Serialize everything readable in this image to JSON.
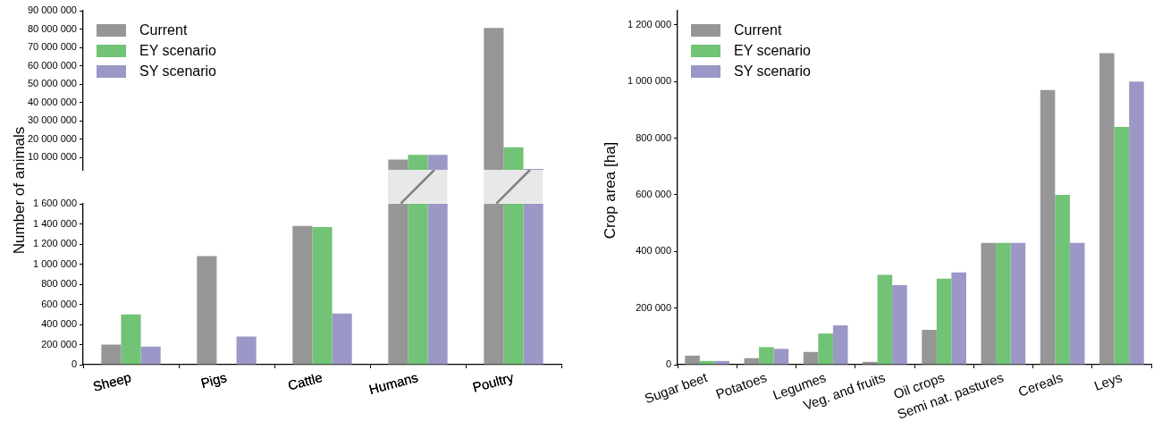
{
  "chart_data": [
    {
      "type": "bar",
      "categories": [
        "Sheep",
        "Pigs",
        "Cattle",
        "Humans",
        "Poultry"
      ],
      "series": [
        {
          "name": "Current",
          "color": "#969696",
          "values": [
            null,
            null,
            null,
            8800000,
            80600000
          ]
        },
        {
          "name": "EY scenario",
          "color": "#71c375",
          "values": [
            null,
            null,
            null,
            11400000,
            15500000
          ]
        },
        {
          "name": "SY scenario",
          "color": "#9b98c7",
          "values": [
            null,
            null,
            null,
            11400000,
            3700000
          ]
        }
      ],
      "ylim": [
        3000000,
        90000000
      ],
      "yticks": [
        {
          "value": 10000000,
          "label": "10 000 000"
        },
        {
          "value": 20000000,
          "label": "20 000 000"
        },
        {
          "value": 30000000,
          "label": "30 000 000"
        },
        {
          "value": 40000000,
          "label": "40 000 000"
        },
        {
          "value": 50000000,
          "label": "50 000 000"
        },
        {
          "value": 60000000,
          "label": "60 000 000"
        },
        {
          "value": 70000000,
          "label": "70 000 000"
        },
        {
          "value": 80000000,
          "label": "80 000 000"
        },
        {
          "value": 90000000,
          "label": "90 000 000"
        }
      ],
      "legend": "top left",
      "tick_labels": "y",
      "grid": false
    },
    {
      "type": "bar",
      "categories": [
        "Sheep",
        "Pigs",
        "Cattle",
        "Humans",
        "Poultry"
      ],
      "ylabel": "Number of animals",
      "series": [
        {
          "color": "#969696",
          "values": [
            200000,
            1080000,
            1380000,
            1600000,
            1600000
          ]
        },
        {
          "color": "#71c375",
          "values": [
            500000,
            0,
            1370000,
            1600000,
            1600000
          ]
        },
        {
          "color": "#9b98c7",
          "values": [
            180000,
            280000,
            510000,
            1600000,
            1600000
          ]
        }
      ],
      "ylim": [
        0,
        1600000
      ],
      "yticks": [
        {
          "value": 0,
          "label": "0"
        },
        {
          "value": 200000,
          "label": "200 000"
        },
        {
          "value": 400000,
          "label": "400 000"
        },
        {
          "value": 600000,
          "label": "600 000"
        },
        {
          "value": 800000,
          "label": "800 000"
        },
        {
          "value": 1000000,
          "label": "1 000 000"
        },
        {
          "value": 1200000,
          "label": "1 200 000"
        },
        {
          "value": 1400000,
          "label": "1 400 000"
        },
        {
          "value": 1600000,
          "label": "1 600 000"
        }
      ],
      "grid": false
    },
    {
      "type": "bar",
      "categories": [
        "Sugar beet",
        "Potatoes",
        "Legumes",
        "Veg. and fruits",
        "Oil crops",
        "Semi nat. pastures",
        "Cereals",
        "Leys"
      ],
      "ylabel": "Crop area [ha]",
      "series": [
        {
          "name": "Current",
          "color": "#969696",
          "values": [
            32000,
            23000,
            45000,
            10000,
            123000,
            430000,
            970000,
            1100000
          ]
        },
        {
          "name": "EY scenario",
          "color": "#71c375",
          "values": [
            13000,
            62000,
            110000,
            317000,
            304000,
            430000,
            600000,
            840000
          ]
        },
        {
          "name": "SY scenario",
          "color": "#9b98c7",
          "values": [
            13000,
            56000,
            139000,
            281000,
            326000,
            430000,
            430000,
            1000000
          ]
        }
      ],
      "ylim": [
        0,
        1250000
      ],
      "yticks": [
        {
          "value": 0,
          "label": "0"
        },
        {
          "value": 200000,
          "label": "200 000"
        },
        {
          "value": 400000,
          "label": "400 000"
        },
        {
          "value": 600000,
          "label": "600 000"
        },
        {
          "value": 800000,
          "label": "800 000"
        },
        {
          "value": 1000000,
          "label": "1 000 000"
        },
        {
          "value": 1200000,
          "label": "1 200 000"
        }
      ],
      "legend": "top left",
      "grid": false
    }
  ]
}
